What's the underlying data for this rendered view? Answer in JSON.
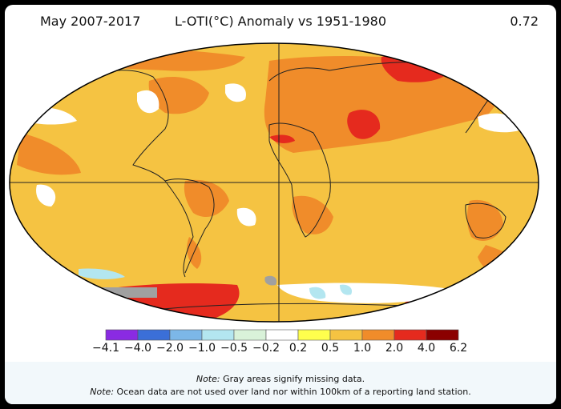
{
  "header": {
    "period": "May 2007-2017",
    "title": "L-OTI(°C) Anomaly vs 1951-1980",
    "global_value": "0.72"
  },
  "legend": {
    "bins": [
      {
        "color": "#8a2be2"
      },
      {
        "color": "#3b6fd8"
      },
      {
        "color": "#7cb7e8"
      },
      {
        "color": "#b3e6f0"
      },
      {
        "color": "#d9f2d9"
      },
      {
        "color": "#ffffff"
      },
      {
        "color": "#ffff4d"
      },
      {
        "color": "#f5c342"
      },
      {
        "color": "#f08c2a"
      },
      {
        "color": "#e52a1e"
      },
      {
        "color": "#8b0000"
      }
    ],
    "ticks": [
      "−4.1",
      "−4.0",
      "−2.0",
      "−1.0",
      "−0.5",
      "−0.2",
      "0.2",
      "0.5",
      "1.0",
      "2.0",
      "4.0",
      "6.2"
    ]
  },
  "notes": {
    "line1_label": "Note:",
    "line1_text": "Gray areas signify missing data.",
    "line2_label": "Note:",
    "line2_text": "Ocean data are not used over land nor within 100km of a reporting land station."
  },
  "colors": {
    "background_frame": "#000000",
    "base_anomaly": "#f5c342",
    "missing_data": "#a0a0a0",
    "coastline": "#222222"
  }
}
